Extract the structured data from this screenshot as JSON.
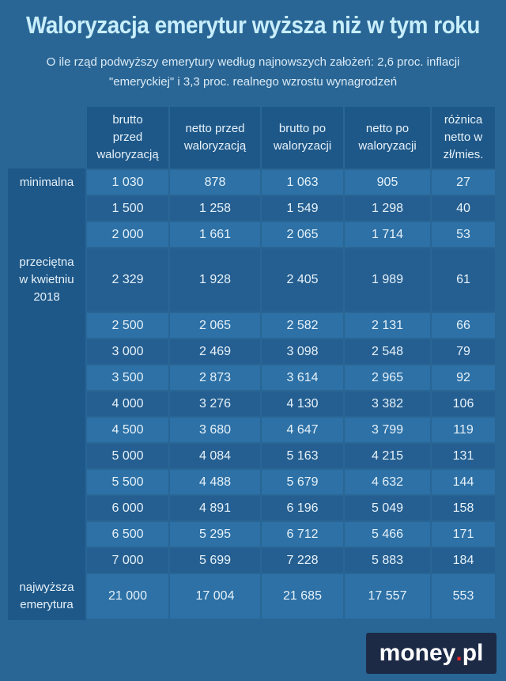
{
  "title": "Waloryzacja emerytur wyższa niż w tym roku",
  "subtitle": [
    "O ile rząd podwyższy emerytury według najnowszych założeń: 2,6 proc. inflacji",
    "\"emeryckiej\" i 3,3 proc. realnego wzrostu wynagrodzeń"
  ],
  "table": {
    "header": [
      [
        "brutto",
        "przed",
        "waloryzacją"
      ],
      [
        "netto przed",
        "waloryzacją"
      ],
      [
        "brutto po",
        "waloryzacji"
      ],
      [
        "netto po",
        "waloryzacji"
      ],
      [
        "różnica",
        "netto w",
        "zł/mies."
      ]
    ],
    "rows": [
      {
        "label": [
          "minimalna"
        ],
        "cells": [
          "1 030",
          "878",
          "1 063",
          "905",
          "27"
        ]
      },
      {
        "cells": [
          "1 500",
          "1 258",
          "1 549",
          "1 298",
          "40"
        ]
      },
      {
        "cells": [
          "2 000",
          "1 661",
          "2 065",
          "1 714",
          "53"
        ]
      },
      {
        "label": [
          "przeciętna",
          "w kwietniu",
          "2018"
        ],
        "cells": [
          "2 329",
          "1 928",
          "2 405",
          "1 989",
          "61"
        ]
      },
      {
        "cells": [
          "2 500",
          "2 065",
          "2 582",
          "2 131",
          "66"
        ]
      },
      {
        "cells": [
          "3 000",
          "2 469",
          "3 098",
          "2 548",
          "79"
        ]
      },
      {
        "cells": [
          "3 500",
          "2 873",
          "3 614",
          "2 965",
          "92"
        ]
      },
      {
        "cells": [
          "4 000",
          "3 276",
          "4 130",
          "3 382",
          "106"
        ]
      },
      {
        "cells": [
          "4 500",
          "3 680",
          "4 647",
          "3 799",
          "119"
        ]
      },
      {
        "cells": [
          "5 000",
          "4 084",
          "5 163",
          "4 215",
          "131"
        ]
      },
      {
        "cells": [
          "5 500",
          "4 488",
          "5 679",
          "4 632",
          "144"
        ]
      },
      {
        "cells": [
          "6 000",
          "4 891",
          "6 196",
          "5 049",
          "158"
        ]
      },
      {
        "cells": [
          "6 500",
          "5 295",
          "6 712",
          "5 466",
          "171"
        ]
      },
      {
        "cells": [
          "7 000",
          "5 699",
          "7 228",
          "5 883",
          "184"
        ]
      },
      {
        "label": [
          "najwyższa",
          "emerytura"
        ],
        "cells": [
          "21 000",
          "17 004",
          "21 685",
          "17 557",
          "553"
        ]
      }
    ]
  },
  "logo": [
    "money",
    ".",
    "pl"
  ]
}
